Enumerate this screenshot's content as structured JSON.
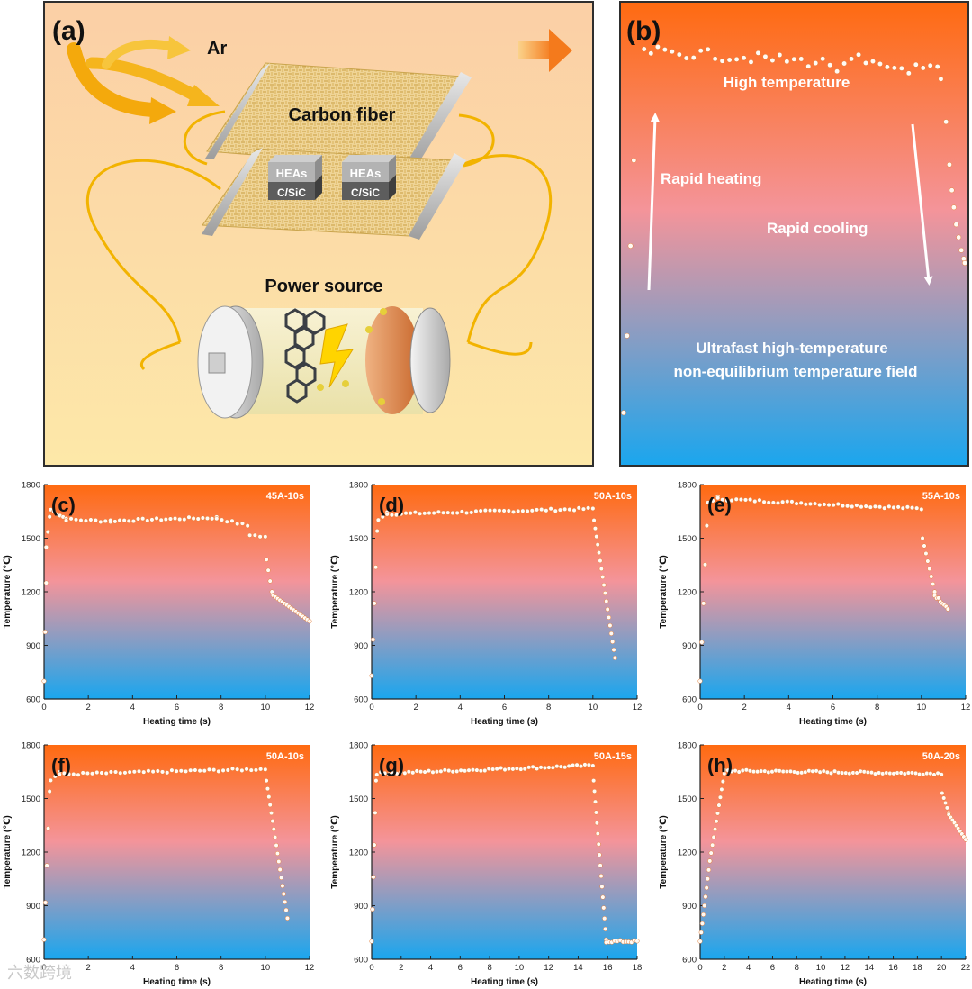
{
  "panel_a": {
    "label": "(a)",
    "gas": "Ar",
    "carbon_fiber": "Carbon fiber",
    "sample_top": "HEAs",
    "sample_bottom": "C/SiC",
    "power_source": "Power source"
  },
  "panel_b": {
    "label": "(b)",
    "high_temperature": "High temperature",
    "rapid_heating": "Rapid heating",
    "rapid_cooling": "Rapid cooling",
    "field_line1": "Ultrafast high-temperature",
    "field_line2": "non-equilibrium temperature field"
  },
  "watermark": "六数跨境",
  "colors": {
    "grad_top": "#ff6a10",
    "grad_mid": "#f4949a",
    "grad_bottom": "#1aa6ee",
    "point": "#fffaf4",
    "point_stroke": "#e27b36",
    "wire": "#f2b300",
    "bg_a_top": "#fbcfa6",
    "bg_a_bottom": "#fde8a8"
  },
  "chart_data": [
    {
      "id": "c",
      "type": "scatter",
      "label": "(c)",
      "condition": "45A-10s",
      "xlabel": "Heating time (s)",
      "ylabel": "Temperature (℃)",
      "xlim": [
        0,
        12
      ],
      "ylim": [
        600,
        1800
      ],
      "xticks": [
        0,
        2,
        4,
        6,
        8,
        10,
        12
      ],
      "yticks": [
        600,
        900,
        1200,
        1500,
        1800
      ],
      "segments": [
        {
          "x0": 0,
          "x1": 0.1,
          "y0": 700,
          "y1": 1250,
          "n": 3
        },
        {
          "x0": 0.1,
          "x1": 0.25,
          "y0": 1450,
          "y1": 1620,
          "n": 3
        },
        {
          "x0": 0.3,
          "x1": 1,
          "y0": 1660,
          "y1": 1610,
          "n": 6
        },
        {
          "x0": 1,
          "x1": 3,
          "y0": 1605,
          "y1": 1595,
          "n": 10
        },
        {
          "x0": 3,
          "x1": 7.8,
          "y0": 1598,
          "y1": 1615,
          "n": 24
        },
        {
          "x0": 7.8,
          "x1": 9.2,
          "y0": 1612,
          "y1": 1570,
          "n": 7
        },
        {
          "x0": 9.3,
          "x1": 10,
          "y0": 1520,
          "y1": 1505,
          "n": 4
        },
        {
          "x0": 10.05,
          "x1": 10.3,
          "y0": 1380,
          "y1": 1200,
          "n": 4
        },
        {
          "x0": 10.35,
          "x1": 12,
          "y0": 1180,
          "y1": 1035,
          "n": 17
        }
      ]
    },
    {
      "id": "d",
      "type": "scatter",
      "label": "(d)",
      "condition": "50A-10s",
      "xlabel": "Heating time (s)",
      "ylabel": "Temperature (℃)",
      "xlim": [
        0,
        12
      ],
      "ylim": [
        600,
        1800
      ],
      "xticks": [
        0,
        2,
        4,
        6,
        8,
        10,
        12
      ],
      "yticks": [
        600,
        900,
        1200,
        1500,
        1800
      ],
      "segments": [
        {
          "x0": 0,
          "x1": 0.25,
          "y0": 730,
          "y1": 1540,
          "n": 5
        },
        {
          "x0": 0.3,
          "x1": 0.7,
          "y0": 1600,
          "y1": 1650,
          "n": 3
        },
        {
          "x0": 0.7,
          "x1": 10,
          "y0": 1635,
          "y1": 1665,
          "n": 45
        },
        {
          "x0": 10.05,
          "x1": 11,
          "y0": 1600,
          "y1": 830,
          "n": 18
        }
      ]
    },
    {
      "id": "e",
      "type": "scatter",
      "label": "(e)",
      "condition": "55A-10s",
      "xlabel": "Heating time (s)",
      "ylabel": "Temperature (℃)",
      "xlim": [
        0,
        12
      ],
      "ylim": [
        600,
        1800
      ],
      "xticks": [
        0,
        2,
        4,
        6,
        8,
        10,
        12
      ],
      "yticks": [
        600,
        900,
        1200,
        1500,
        1800
      ],
      "segments": [
        {
          "x0": 0,
          "x1": 0.3,
          "y0": 700,
          "y1": 1570,
          "n": 5
        },
        {
          "x0": 0.35,
          "x1": 0.8,
          "y0": 1700,
          "y1": 1730,
          "n": 3
        },
        {
          "x0": 0.8,
          "x1": 10,
          "y0": 1720,
          "y1": 1665,
          "n": 45
        },
        {
          "x0": 10.05,
          "x1": 10.6,
          "y0": 1500,
          "y1": 1200,
          "n": 8
        },
        {
          "x0": 10.6,
          "x1": 11.2,
          "y0": 1180,
          "y1": 1110,
          "n": 8
        }
      ]
    },
    {
      "id": "f",
      "type": "scatter",
      "label": "(f)",
      "condition": "50A-10s",
      "xlabel": "Heating time (s)",
      "ylabel": "Temperature (℃)",
      "xlim": [
        0,
        12
      ],
      "ylim": [
        600,
        1800
      ],
      "xticks": [
        0,
        2,
        4,
        6,
        8,
        10,
        12
      ],
      "yticks": [
        600,
        900,
        1200,
        1500,
        1800
      ],
      "segments": [
        {
          "x0": 0,
          "x1": 0.25,
          "y0": 710,
          "y1": 1540,
          "n": 5
        },
        {
          "x0": 0.3,
          "x1": 0.7,
          "y0": 1600,
          "y1": 1650,
          "n": 3
        },
        {
          "x0": 0.7,
          "x1": 10,
          "y0": 1635,
          "y1": 1665,
          "n": 45
        },
        {
          "x0": 10.05,
          "x1": 11,
          "y0": 1600,
          "y1": 830,
          "n": 18
        }
      ]
    },
    {
      "id": "g",
      "type": "scatter",
      "label": "(g)",
      "condition": "50A-15s",
      "xlabel": "Heating time (s)",
      "ylabel": "Temperature (℃)",
      "xlim": [
        0,
        18
      ],
      "ylim": [
        600,
        1800
      ],
      "xticks": [
        0,
        2,
        4,
        6,
        8,
        10,
        12,
        14,
        16,
        18
      ],
      "yticks": [
        600,
        900,
        1200,
        1500,
        1800
      ],
      "segments": [
        {
          "x0": 0,
          "x1": 0.3,
          "y0": 700,
          "y1": 1600,
          "n": 6
        },
        {
          "x0": 0.35,
          "x1": 15,
          "y0": 1640,
          "y1": 1685,
          "n": 55
        },
        {
          "x0": 15.05,
          "x1": 15.9,
          "y0": 1600,
          "y1": 710,
          "n": 16
        },
        {
          "x0": 15.9,
          "x1": 18,
          "y0": 700,
          "y1": 700,
          "n": 12
        }
      ]
    },
    {
      "id": "h",
      "type": "scatter",
      "label": "(h)",
      "condition": "50A-20s",
      "xlabel": "Heating time (s)",
      "ylabel": "Temperature (℃)",
      "xlim": [
        0,
        22
      ],
      "ylim": [
        600,
        1800
      ],
      "xticks": [
        0,
        2,
        4,
        6,
        8,
        10,
        12,
        14,
        16,
        18,
        20,
        22
      ],
      "yticks": [
        600,
        900,
        1200,
        1500,
        1800
      ],
      "segments": [
        {
          "x0": 0,
          "x1": 0.8,
          "y0": 700,
          "y1": 1150,
          "n": 10
        },
        {
          "x0": 0.8,
          "x1": 2,
          "y0": 1150,
          "y1": 1640,
          "n": 12
        },
        {
          "x0": 2,
          "x1": 20,
          "y0": 1655,
          "y1": 1640,
          "n": 60
        },
        {
          "x0": 20.05,
          "x1": 20.6,
          "y0": 1530,
          "y1": 1420,
          "n": 5
        },
        {
          "x0": 20.6,
          "x1": 22,
          "y0": 1410,
          "y1": 1270,
          "n": 10
        }
      ]
    }
  ]
}
